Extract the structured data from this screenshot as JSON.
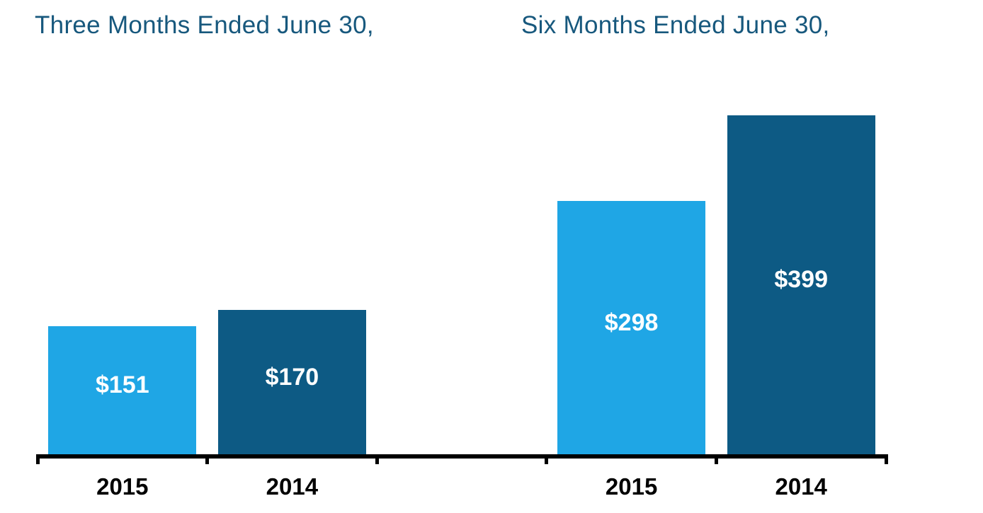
{
  "chart_data": {
    "type": "bar",
    "groups": [
      {
        "title": "Three Months Ended June 30,",
        "categories": [
          "2015",
          "2014"
        ],
        "values": [
          151,
          170
        ],
        "value_labels": [
          "$151",
          "$170"
        ]
      },
      {
        "title": "Six Months Ended June 30,",
        "categories": [
          "2015",
          "2014"
        ],
        "values": [
          298,
          399
        ],
        "value_labels": [
          "$298",
          "$399"
        ]
      }
    ],
    "series_colors": {
      "2015": "#1FA6E5",
      "2014": "#0D5A84"
    },
    "title_color": "#17587D",
    "axis_color": "#000000",
    "value_label_color": "#FFFFFF",
    "x_label_color": "#000000",
    "ylim": [
      0,
      399
    ],
    "grid": false,
    "legend": "none",
    "value_prefix": "$"
  }
}
